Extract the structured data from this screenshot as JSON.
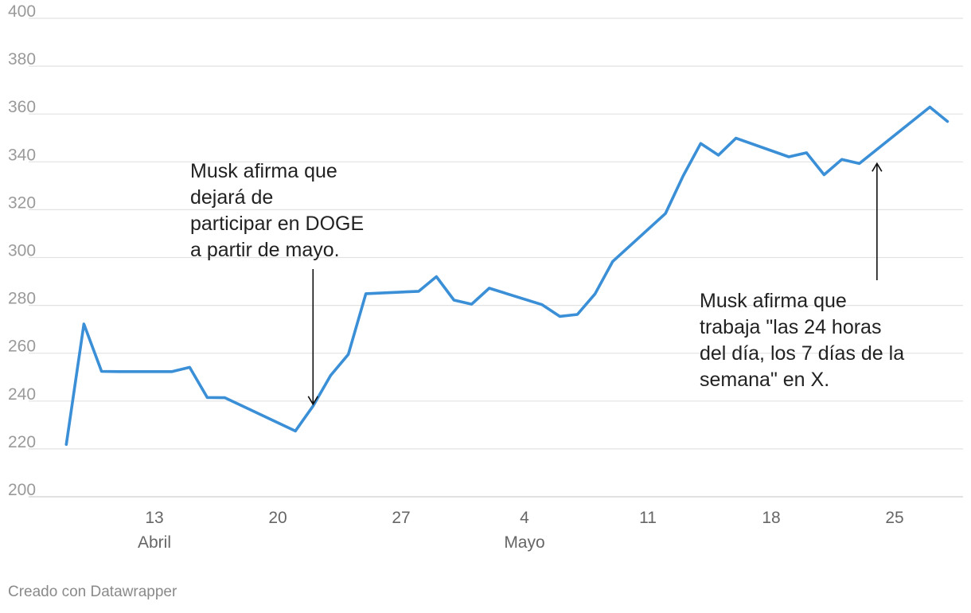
{
  "chart_data": {
    "type": "line",
    "ylim": [
      200,
      400
    ],
    "yticks": [
      200,
      220,
      240,
      260,
      280,
      300,
      320,
      340,
      360,
      380,
      400
    ],
    "xlim": [
      "2025-04-07",
      "2025-05-30"
    ],
    "xticks": [
      {
        "date": "2025-04-13",
        "label": "13",
        "month": "Abril"
      },
      {
        "date": "2025-04-20",
        "label": "20",
        "month": ""
      },
      {
        "date": "2025-04-27",
        "label": "27",
        "month": ""
      },
      {
        "date": "2025-05-04",
        "label": "4",
        "month": "Mayo"
      },
      {
        "date": "2025-05-11",
        "label": "11",
        "month": ""
      },
      {
        "date": "2025-05-18",
        "label": "18",
        "month": ""
      },
      {
        "date": "2025-05-25",
        "label": "25",
        "month": ""
      }
    ],
    "grid": true,
    "color": "#3a8fd6",
    "series": [
      {
        "points": [
          [
            "2025-04-08",
            221.9
          ],
          [
            "2025-04-09",
            272.2
          ],
          [
            "2025-04-10",
            252.4
          ],
          [
            "2025-04-11",
            252.3
          ],
          [
            "2025-04-14",
            252.3
          ],
          [
            "2025-04-15",
            254.1
          ],
          [
            "2025-04-16",
            241.5
          ],
          [
            "2025-04-17",
            241.4
          ],
          [
            "2025-04-21",
            227.5
          ],
          [
            "2025-04-22",
            237.9
          ],
          [
            "2025-04-23",
            250.7
          ],
          [
            "2025-04-24",
            259.5
          ],
          [
            "2025-04-25",
            284.9
          ],
          [
            "2025-04-28",
            285.9
          ],
          [
            "2025-04-29",
            292.0
          ],
          [
            "2025-04-30",
            282.2
          ],
          [
            "2025-05-01",
            280.5
          ],
          [
            "2025-05-02",
            287.2
          ],
          [
            "2025-05-05",
            280.3
          ],
          [
            "2025-05-06",
            275.4
          ],
          [
            "2025-05-07",
            276.2
          ],
          [
            "2025-05-08",
            284.8
          ],
          [
            "2025-05-09",
            298.3
          ],
          [
            "2025-05-12",
            318.4
          ],
          [
            "2025-05-13",
            334.1
          ],
          [
            "2025-05-14",
            347.7
          ],
          [
            "2025-05-15",
            342.8
          ],
          [
            "2025-05-16",
            349.9
          ],
          [
            "2025-05-19",
            342.1
          ],
          [
            "2025-05-20",
            343.8
          ],
          [
            "2025-05-21",
            334.6
          ],
          [
            "2025-05-22",
            341.0
          ],
          [
            "2025-05-23",
            339.3
          ],
          [
            "2025-05-27",
            362.9
          ],
          [
            "2025-05-28",
            356.9
          ]
        ]
      }
    ],
    "annotations": [
      {
        "lines": [
          "Musk afirma que",
          "dejará de",
          "participar en DOGE",
          "a partir de mayo."
        ],
        "date": "2025-04-22",
        "value": 238
      },
      {
        "lines": [
          "Musk afirma que",
          "trabaja \"las 24 horas",
          "del día, los 7 días de la",
          "semana\" en X."
        ],
        "date": "2025-05-24",
        "value": 340
      }
    ]
  },
  "credit": "Creado con Datawrapper"
}
